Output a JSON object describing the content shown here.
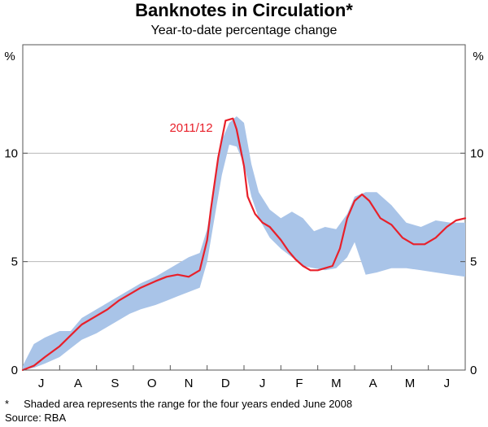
{
  "chart_data": {
    "type": "line",
    "title": "Banknotes in Circulation*",
    "subtitle": "Year-to-date percentage change",
    "y_unit_left": "%",
    "y_unit_right": "%",
    "ylim": [
      0,
      15
    ],
    "yticks": [
      0,
      5,
      10
    ],
    "grid": true,
    "months": [
      "J",
      "A",
      "S",
      "O",
      "N",
      "D",
      "J",
      "F",
      "M",
      "A",
      "M",
      "J"
    ],
    "xlim": [
      0,
      12
    ],
    "series": [
      {
        "name": "2011/12",
        "color": "#e8202a",
        "x": [
          0.0,
          0.3,
          0.6,
          1.0,
          1.3,
          1.6,
          2.0,
          2.3,
          2.6,
          2.9,
          3.2,
          3.6,
          3.9,
          4.2,
          4.5,
          4.8,
          5.0,
          5.1,
          5.3,
          5.5,
          5.7,
          5.8,
          6.0,
          6.1,
          6.3,
          6.5,
          6.7,
          7.0,
          7.2,
          7.4,
          7.6,
          7.8,
          8.0,
          8.2,
          8.4,
          8.6,
          8.8,
          9.0,
          9.2,
          9.4,
          9.7,
          10.0,
          10.3,
          10.6,
          10.9,
          11.2,
          11.5,
          11.75,
          12.0
        ],
        "y": [
          0.0,
          0.2,
          0.6,
          1.1,
          1.6,
          2.1,
          2.5,
          2.8,
          3.2,
          3.5,
          3.8,
          4.1,
          4.3,
          4.4,
          4.3,
          4.6,
          6.0,
          7.4,
          9.8,
          11.5,
          11.6,
          11.1,
          9.4,
          8.0,
          7.2,
          6.8,
          6.6,
          6.0,
          5.5,
          5.1,
          4.8,
          4.6,
          4.6,
          4.7,
          4.8,
          5.6,
          7.0,
          7.8,
          8.1,
          7.8,
          7.0,
          6.7,
          6.1,
          5.8,
          5.8,
          6.1,
          6.6,
          6.9,
          7.0
        ]
      }
    ],
    "range": {
      "x": [
        0.0,
        0.3,
        0.6,
        1.0,
        1.3,
        1.6,
        2.0,
        2.3,
        2.6,
        2.9,
        3.2,
        3.6,
        3.9,
        4.2,
        4.5,
        4.8,
        5.0,
        5.2,
        5.4,
        5.6,
        5.8,
        6.0,
        6.2,
        6.4,
        6.7,
        7.0,
        7.3,
        7.6,
        7.9,
        8.2,
        8.5,
        8.8,
        9.0,
        9.3,
        9.6,
        10.0,
        10.4,
        10.8,
        11.2,
        11.6,
        12.0
      ],
      "high": [
        0.2,
        1.2,
        1.5,
        1.8,
        1.8,
        2.4,
        2.8,
        3.1,
        3.4,
        3.7,
        4.0,
        4.3,
        4.6,
        4.9,
        5.2,
        5.4,
        6.5,
        8.5,
        10.6,
        11.4,
        11.7,
        11.4,
        9.5,
        8.2,
        7.4,
        7.0,
        7.3,
        7.0,
        6.4,
        6.6,
        6.5,
        7.2,
        8.0,
        8.2,
        8.2,
        7.6,
        6.8,
        6.6,
        6.9,
        6.8,
        6.8
      ],
      "low": [
        0.0,
        0.1,
        0.3,
        0.6,
        1.0,
        1.4,
        1.7,
        2.0,
        2.3,
        2.6,
        2.8,
        3.0,
        3.2,
        3.4,
        3.6,
        3.8,
        5.0,
        7.0,
        9.0,
        10.4,
        10.3,
        9.5,
        8.0,
        7.0,
        6.1,
        5.6,
        5.2,
        4.8,
        4.7,
        4.6,
        4.7,
        5.2,
        5.9,
        4.4,
        4.5,
        4.7,
        4.7,
        4.6,
        4.5,
        4.4,
        4.3
      ],
      "color": "#a9c4e8"
    },
    "series_label": "2011/12",
    "footnote": "*     Shaded area represents the range for the four years ended June 2008",
    "source": "Source: RBA"
  }
}
